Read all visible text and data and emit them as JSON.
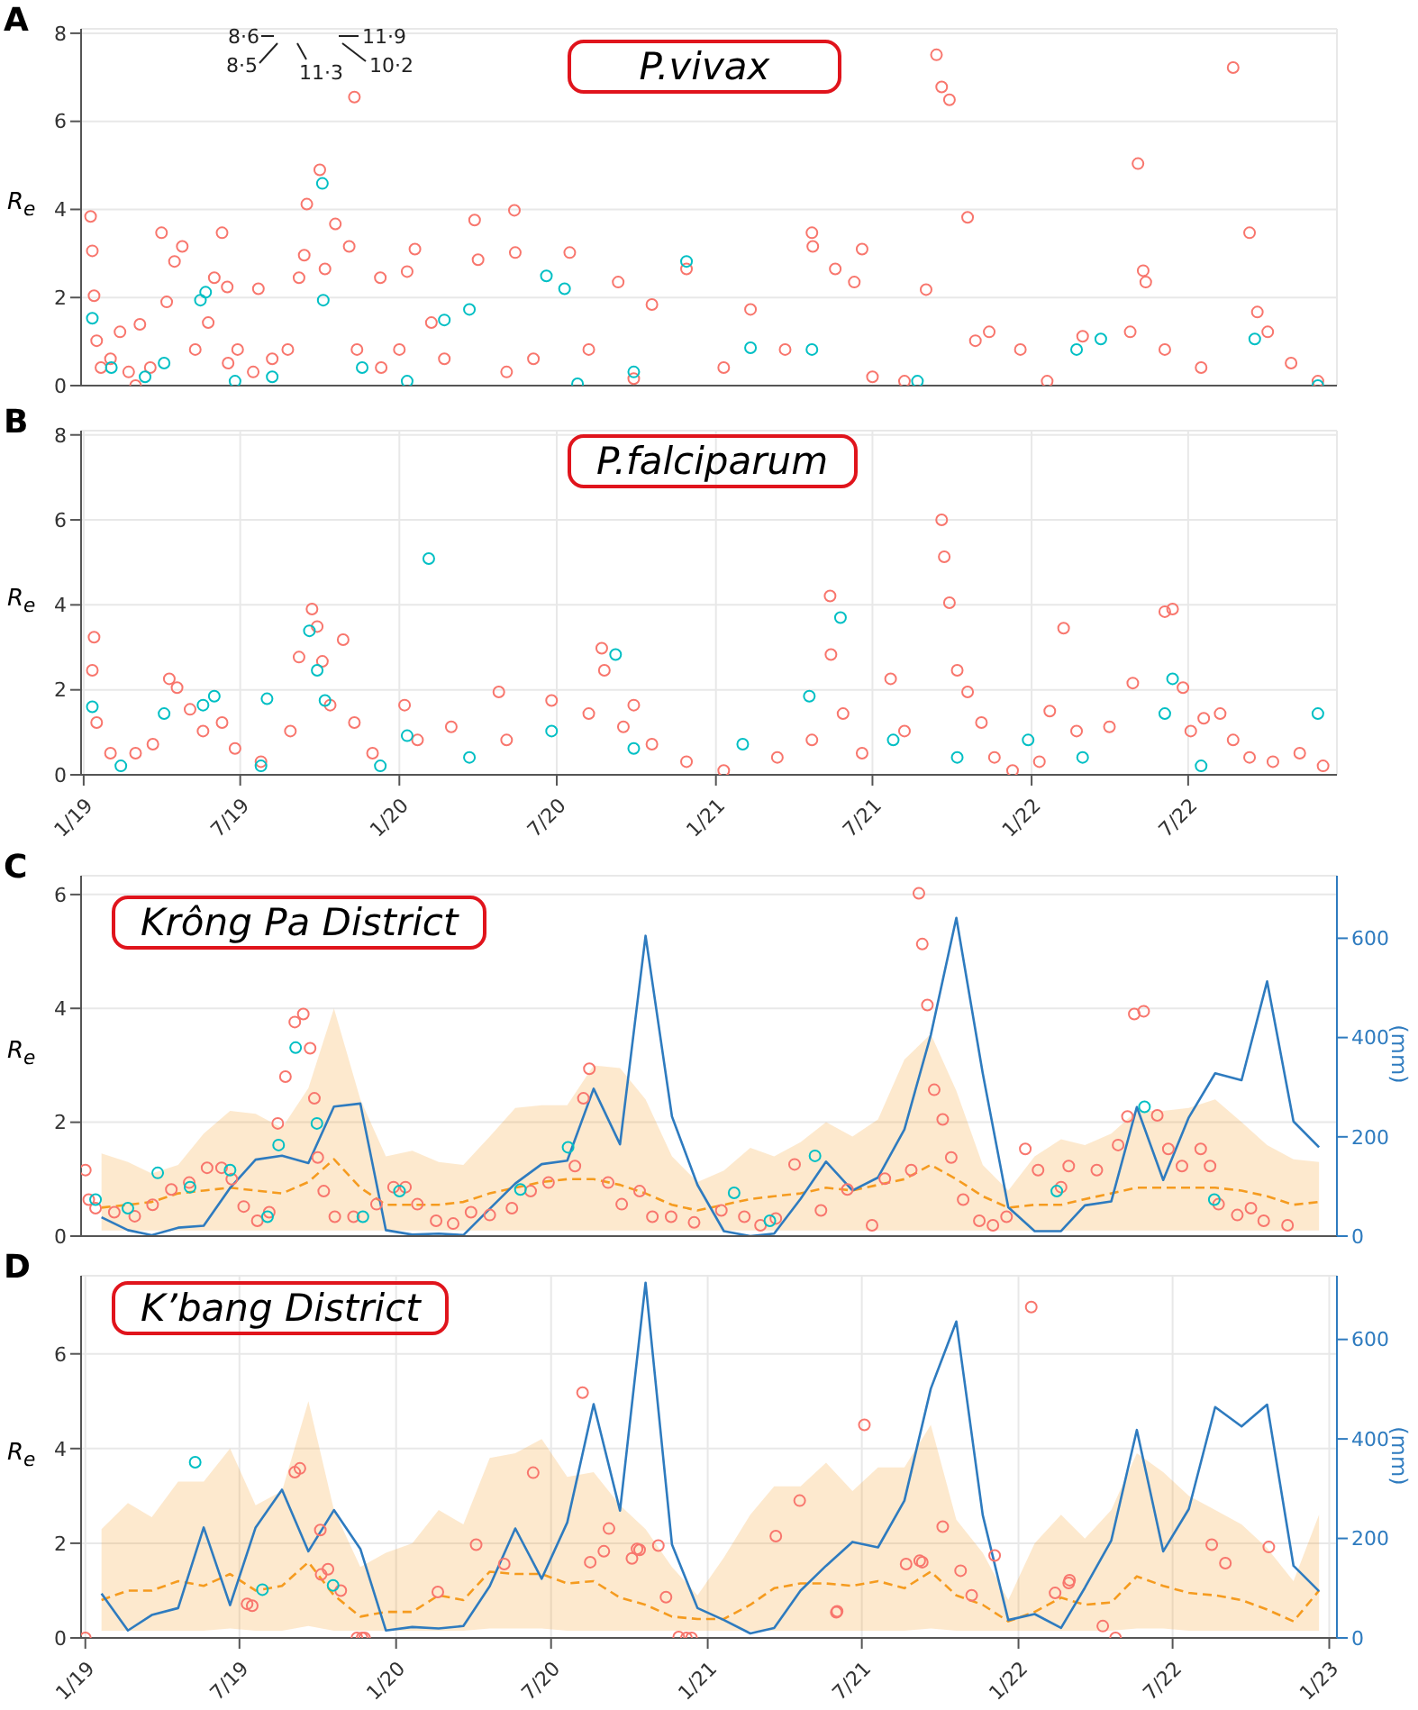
{
  "chart_data": [
    {
      "type": "scatter",
      "title": "P.vivax",
      "ylabel": "R$_{e}$",
      "annotations": [
        "A",
        "8·6",
        "8·5",
        "11·3",
        "11·9",
        "10·2"
      ],
      "xlim": [
        "2018-12-29",
        "2022-12-20"
      ],
      "xticks": [
        {
          "value": "2019-01-01",
          "label": null
        },
        {
          "value": "2019-07-01",
          "label": null
        },
        {
          "value": "2020-01-01",
          "label": null
        },
        {
          "value": "2020-07-01",
          "label": null
        },
        {
          "value": "2021-01-01",
          "label": null
        },
        {
          "value": "2021-07-01",
          "label": null
        },
        {
          "value": "2022-01-01",
          "label": null
        },
        {
          "value": "2022-07-01",
          "label": null
        }
      ],
      "ylim": [
        0,
        8.1
      ],
      "yticks": [
        0,
        2,
        4,
        6,
        8
      ],
      "grid": true,
      "tick_labels": "y",
      "series": [
        {
          "marker": "circle",
          "color": "#f8766d",
          "x": [
            "2019-01-09",
            "2019-01-11",
            "2019-01-13",
            "2019-01-16",
            "2019-01-21",
            "2019-02-01",
            "2019-02-12",
            "2019-02-22",
            "2019-03-02",
            "2019-03-07",
            "2019-03-19",
            "2019-04-01",
            "2019-04-07",
            "2019-04-16",
            "2019-04-25",
            "2019-05-10",
            "2019-05-25",
            "2019-06-01",
            "2019-06-10",
            "2019-06-16",
            "2019-06-17",
            "2019-06-28",
            "2019-07-16",
            "2019-07-22",
            "2019-08-07",
            "2019-08-25",
            "2019-09-07",
            "2019-09-13",
            "2019-09-16",
            "2019-10-01",
            "2019-10-07",
            "2019-10-19",
            "2019-11-04",
            "2019-11-10",
            "2019-11-13",
            "2019-12-10",
            "2019-12-11",
            "2020-01-01",
            "2020-01-10",
            "2020-01-19",
            "2020-02-07",
            "2020-02-22",
            "2020-03-28",
            "2020-04-01",
            "2020-05-04",
            "2020-05-13",
            "2020-05-14",
            "2020-06-04",
            "2020-07-16",
            "2020-08-07",
            "2020-09-10",
            "2020-09-28",
            "2020-10-19",
            "2020-11-28",
            "2021-01-10",
            "2021-02-10",
            "2021-03-22",
            "2021-04-22",
            "2021-04-23",
            "2021-05-19",
            "2021-06-10",
            "2021-06-19",
            "2021-07-01",
            "2021-08-07",
            "2021-09-01",
            "2021-09-13",
            "2021-09-19",
            "2021-09-28",
            "2021-10-19",
            "2021-10-28",
            "2021-11-13",
            "2021-12-19",
            "2022-01-19",
            "2022-03-01",
            "2022-04-25",
            "2022-05-04",
            "2022-05-10",
            "2022-05-13",
            "2022-06-04",
            "2022-07-16",
            "2022-08-22",
            "2022-09-10",
            "2022-09-19",
            "2022-10-01",
            "2022-10-28",
            "2022-11-28"
          ],
          "values": [
            3.84,
            3.06,
            2.04,
            1.02,
            0.41,
            0.61,
            1.22,
            0.31,
            0,
            1.39,
            0.41,
            3.47,
            1.9,
            2.82,
            3.16,
            0.82,
            1.43,
            2.45,
            3.47,
            2.24,
            0.51,
            0.82,
            0.31,
            2.2,
            0.61,
            0.82,
            2.45,
            2.96,
            4.12,
            4.9,
            2.65,
            3.67,
            3.16,
            6.55,
            0.82,
            2.45,
            0.41,
            0.82,
            2.59,
            3.1,
            1.43,
            0.61,
            3.76,
            2.86,
            0.31,
            3.98,
            3.02,
            0.61,
            3.02,
            0.82,
            2.35,
            0.16,
            1.84,
            2.65,
            0.41,
            1.73,
            0.82,
            3.47,
            3.16,
            2.65,
            2.35,
            3.1,
            0.2,
            0.1,
            2.18,
            7.51,
            6.78,
            6.49,
            3.82,
            1.02,
            1.22,
            0.82,
            0.1,
            1.12,
            1.22,
            5.04,
            2.61,
            2.35,
            0.82,
            0.41,
            7.22,
            3.47,
            1.67,
            1.22,
            0.51,
            0.1
          ]
        },
        {
          "marker": "circle",
          "color": "#00bfc4",
          "x": [
            "2019-01-11",
            "2019-02-02",
            "2019-03-13",
            "2019-04-04",
            "2019-05-16",
            "2019-05-22",
            "2019-06-25",
            "2019-08-07",
            "2019-10-04",
            "2019-10-05",
            "2019-11-19",
            "2020-01-10",
            "2020-02-22",
            "2020-03-22",
            "2020-06-19",
            "2020-07-10",
            "2020-07-25",
            "2020-09-28",
            "2020-11-28",
            "2021-02-10",
            "2021-04-22",
            "2021-08-22",
            "2022-02-22",
            "2022-03-22",
            "2022-09-16",
            "2022-11-28"
          ],
          "values": [
            1.53,
            0.41,
            0.2,
            0.51,
            1.94,
            2.12,
            0.1,
            0.2,
            4.59,
            1.94,
            0.41,
            0.1,
            1.49,
            1.73,
            2.49,
            2.2,
            0.04,
            0.31,
            2.82,
            0.86,
            0.82,
            0.1,
            0.82,
            1.06,
            1.06,
            0
          ]
        }
      ]
    },
    {
      "type": "scatter",
      "title": "P.falciparum",
      "ylabel": "R$_{e}$",
      "annotations": [
        "B"
      ],
      "xlim": [
        "2018-12-29",
        "2022-12-20"
      ],
      "xticks": [
        {
          "value": "2019-01-01",
          "label": "1/19"
        },
        {
          "value": "2019-07-01",
          "label": "7/19"
        },
        {
          "value": "2020-01-01",
          "label": "1/20"
        },
        {
          "value": "2020-07-01",
          "label": "7/20"
        },
        {
          "value": "2021-01-01",
          "label": "1/21"
        },
        {
          "value": "2021-07-01",
          "label": "7/21"
        },
        {
          "value": "2022-01-01",
          "label": "1/22"
        },
        {
          "value": "2022-07-01",
          "label": "7/22"
        }
      ],
      "ylim": [
        0,
        8.1
      ],
      "yticks": [
        0,
        2,
        4,
        6,
        8
      ],
      "grid": true,
      "series": [
        {
          "marker": "circle",
          "color": "#f8766d",
          "x": [
            "2019-01-11",
            "2019-01-13",
            "2019-01-16",
            "2019-02-01",
            "2019-03-02",
            "2019-03-22",
            "2019-04-10",
            "2019-04-19",
            "2019-05-04",
            "2019-05-19",
            "2019-06-10",
            "2019-06-25",
            "2019-07-25",
            "2019-08-28",
            "2019-09-07",
            "2019-09-22",
            "2019-09-28",
            "2019-10-04",
            "2019-10-13",
            "2019-10-28",
            "2019-11-10",
            "2019-12-01",
            "2020-01-07",
            "2020-01-22",
            "2020-03-01",
            "2020-04-25",
            "2020-05-04",
            "2020-06-25",
            "2020-08-07",
            "2020-08-22",
            "2020-08-25",
            "2020-09-16",
            "2020-09-28",
            "2020-10-19",
            "2020-11-28",
            "2021-01-10",
            "2021-03-13",
            "2021-04-22",
            "2021-05-13",
            "2021-05-14",
            "2021-05-28",
            "2021-06-19",
            "2021-07-22",
            "2021-08-07",
            "2021-09-19",
            "2021-09-22",
            "2021-09-28",
            "2021-10-07",
            "2021-10-19",
            "2021-11-04",
            "2021-11-19",
            "2021-12-10",
            "2022-01-10",
            "2022-01-22",
            "2022-02-07",
            "2022-02-22",
            "2022-04-01",
            "2022-04-28",
            "2022-06-04",
            "2022-06-13",
            "2022-06-25",
            "2022-07-04",
            "2022-07-19",
            "2022-08-07",
            "2022-08-22",
            "2022-09-10",
            "2022-10-07",
            "2022-11-07",
            "2022-12-04"
          ],
          "values": [
            2.46,
            3.24,
            1.23,
            0.51,
            0.51,
            0.72,
            2.26,
            2.05,
            1.54,
            1.03,
            1.23,
            0.62,
            0.31,
            1.03,
            2.77,
            3.9,
            3.49,
            2.67,
            1.64,
            3.18,
            1.23,
            0.51,
            1.64,
            0.82,
            1.13,
            1.95,
            0.82,
            1.75,
            1.44,
            2.98,
            2.46,
            1.13,
            1.64,
            0.72,
            0.31,
            0.1,
            0.41,
            0.82,
            4.21,
            2.83,
            1.44,
            0.51,
            2.26,
            1.03,
            6.0,
            5.13,
            4.05,
            2.46,
            1.95,
            1.23,
            0.41,
            0.1,
            0.31,
            1.5,
            3.45,
            1.03,
            1.13,
            2.16,
            3.84,
            3.9,
            2.05,
            1.03,
            1.33,
            1.44,
            0.82,
            0.41,
            0.31,
            0.51,
            0.21
          ]
        },
        {
          "marker": "circle",
          "color": "#00bfc4",
          "x": [
            "2019-01-11",
            "2019-02-13",
            "2019-04-04",
            "2019-05-19",
            "2019-06-01",
            "2019-07-25",
            "2019-08-01",
            "2019-09-19",
            "2019-09-28",
            "2019-10-07",
            "2019-12-10",
            "2020-01-10",
            "2020-02-04",
            "2020-03-22",
            "2020-06-25",
            "2020-09-07",
            "2020-09-28",
            "2021-02-01",
            "2021-04-19",
            "2021-05-25",
            "2021-07-25",
            "2021-10-07",
            "2021-12-28",
            "2022-03-01",
            "2022-06-04",
            "2022-06-13",
            "2022-07-16",
            "2022-11-28"
          ],
          "values": [
            1.6,
            0.21,
            1.44,
            1.64,
            1.85,
            0.21,
            1.79,
            3.39,
            2.46,
            1.75,
            0.21,
            0.92,
            5.09,
            0.41,
            1.03,
            2.83,
            0.62,
            0.72,
            1.85,
            3.7,
            0.82,
            0.41,
            0.82,
            0.41,
            1.44,
            2.26,
            0.21,
            1.44
          ]
        }
      ]
    },
    {
      "type": "scatter",
      "title": "Krông Pa District",
      "ylabel": "R$_{e}$",
      "y2label": "(mm)",
      "annotations": [
        "C"
      ],
      "xlim": [
        "2018-12-27",
        "2023-01-10"
      ],
      "xticks": [
        {
          "value": "2019-01-01",
          "label": null
        },
        {
          "value": "2019-07-01",
          "label": null
        },
        {
          "value": "2020-01-01",
          "label": null
        },
        {
          "value": "2020-07-01",
          "label": null
        },
        {
          "value": "2021-01-01",
          "label": null
        },
        {
          "value": "2021-07-01",
          "label": null
        },
        {
          "value": "2022-01-01",
          "label": null
        },
        {
          "value": "2022-07-01",
          "label": null
        },
        {
          "value": "2023-01-01",
          "label": null
        }
      ],
      "ylim": [
        0,
        6.33
      ],
      "yticks": [
        0,
        2,
        4,
        6
      ],
      "y2lim": [
        0,
        726
      ],
      "y2ticks": [
        0,
        200,
        400,
        600
      ],
      "grid": true,
      "tick_labels": "y",
      "x": [
        "2019-01-20",
        "2019-02-20",
        "2019-03-20",
        "2019-04-20",
        "2019-05-20",
        "2019-06-20",
        "2019-07-20",
        "2019-08-20",
        "2019-09-20",
        "2019-10-20",
        "2019-11-20",
        "2019-12-20",
        "2020-01-20",
        "2020-02-20",
        "2020-03-20",
        "2020-04-20",
        "2020-05-20",
        "2020-06-20",
        "2020-07-20",
        "2020-08-20",
        "2020-09-20",
        "2020-10-20",
        "2020-11-20",
        "2020-12-20",
        "2021-01-20",
        "2021-02-20",
        "2021-03-20",
        "2021-04-20",
        "2021-05-20",
        "2021-06-20",
        "2021-07-20",
        "2021-08-20",
        "2021-09-20",
        "2021-10-20",
        "2021-11-20",
        "2021-12-20",
        "2022-01-20",
        "2022-02-20",
        "2022-03-20",
        "2022-04-20",
        "2022-05-20",
        "2022-06-20",
        "2022-07-20",
        "2022-08-20",
        "2022-09-20",
        "2022-10-20",
        "2022-11-20",
        "2022-12-20"
      ],
      "series": [
        {
          "type": "line",
          "color": "#f59b1f",
          "line_style": "dashed",
          "values": [
            0.5,
            0.55,
            0.6,
            0.75,
            0.8,
            0.85,
            0.8,
            0.75,
            0.95,
            1.35,
            0.85,
            0.55,
            0.55,
            0.55,
            0.6,
            0.75,
            0.85,
            0.95,
            1.0,
            1.0,
            0.9,
            0.75,
            0.55,
            0.45,
            0.55,
            0.65,
            0.7,
            0.75,
            0.85,
            0.8,
            0.9,
            1.0,
            1.25,
            1.0,
            0.7,
            0.5,
            0.55,
            0.55,
            0.65,
            0.75,
            0.85,
            0.85,
            0.85,
            0.85,
            0.8,
            0.7,
            0.55,
            0.6
          ],
          "lower": [
            0.1,
            0.1,
            0.1,
            0.1,
            0.1,
            0.1,
            0.1,
            0.1,
            0.1,
            0.1,
            0.1,
            0.1,
            0.1,
            0.1,
            0.1,
            0.1,
            0.1,
            0.1,
            0.1,
            0.1,
            0.1,
            0.1,
            0.1,
            0.1,
            0.1,
            0.1,
            0.1,
            0.1,
            0.1,
            0.1,
            0.1,
            0.1,
            0.1,
            0.1,
            0.1,
            0.1,
            0.1,
            0.1,
            0.1,
            0.1,
            0.1,
            0.1,
            0.1,
            0.1,
            0.1,
            0.1,
            0.1,
            0.1
          ],
          "upper": [
            1.45,
            1.3,
            1.1,
            1.25,
            1.8,
            2.2,
            2.15,
            1.9,
            2.6,
            4.0,
            2.4,
            1.4,
            1.5,
            1.3,
            1.25,
            1.75,
            2.25,
            2.3,
            2.3,
            3.0,
            2.95,
            2.4,
            1.4,
            0.95,
            1.15,
            1.55,
            1.4,
            1.65,
            2.0,
            1.75,
            2.05,
            3.1,
            3.55,
            2.55,
            1.25,
            0.8,
            1.4,
            1.7,
            1.6,
            1.8,
            2.2,
            2.2,
            2.25,
            2.4,
            2.0,
            1.6,
            1.35,
            1.3
          ]
        },
        {
          "marker": "circle",
          "color": "#f8766d",
          "x": [
            "2019-01-01",
            "2019-01-05",
            "2019-01-13",
            "2019-02-04",
            "2019-02-28",
            "2019-03-21",
            "2019-04-12",
            "2019-05-03",
            "2019-05-24",
            "2019-06-10",
            "2019-06-22",
            "2019-07-06",
            "2019-07-22",
            "2019-08-05",
            "2019-08-15",
            "2019-08-24",
            "2019-09-04",
            "2019-09-14",
            "2019-09-22",
            "2019-09-27",
            "2019-10-01",
            "2019-10-08",
            "2019-10-21",
            "2019-11-12",
            "2019-12-09",
            "2019-12-29",
            "2020-01-12",
            "2020-01-26",
            "2020-02-17",
            "2020-03-08",
            "2020-03-29",
            "2020-04-20",
            "2020-05-16",
            "2020-06-07",
            "2020-06-28",
            "2020-07-29",
            "2020-08-08",
            "2020-08-15",
            "2020-09-06",
            "2020-09-22",
            "2020-10-13",
            "2020-10-28",
            "2020-11-19",
            "2020-12-16",
            "2021-01-17",
            "2021-02-13",
            "2021-03-04",
            "2021-03-22",
            "2021-04-13",
            "2021-05-14",
            "2021-06-14",
            "2021-07-13",
            "2021-07-28",
            "2021-08-28",
            "2021-09-06",
            "2021-09-10",
            "2021-09-16",
            "2021-09-24",
            "2021-10-04",
            "2021-10-14",
            "2021-10-28",
            "2021-11-16",
            "2021-12-02",
            "2021-12-18",
            "2022-01-09",
            "2022-01-24",
            "2022-02-20",
            "2022-03-01",
            "2022-04-03",
            "2022-04-28",
            "2022-05-09",
            "2022-05-17",
            "2022-05-28",
            "2022-06-13",
            "2022-06-26",
            "2022-07-12",
            "2022-08-03",
            "2022-08-14",
            "2022-08-24",
            "2022-09-15",
            "2022-10-01",
            "2022-10-16",
            "2022-11-13"
          ],
          "values": [
            1.16,
            0.64,
            0.49,
            0.42,
            0.35,
            0.55,
            0.82,
            0.94,
            1.2,
            1.2,
            1.0,
            0.52,
            0.27,
            0.42,
            1.98,
            2.8,
            3.76,
            3.9,
            3.3,
            2.42,
            1.38,
            0.79,
            0.34,
            0.34,
            0.56,
            0.86,
            0.86,
            0.56,
            0.27,
            0.22,
            0.42,
            0.37,
            0.49,
            0.79,
            0.94,
            1.23,
            2.42,
            2.94,
            0.94,
            0.56,
            0.79,
            0.34,
            0.34,
            0.24,
            0.45,
            0.34,
            0.19,
            0.31,
            1.26,
            0.45,
            0.82,
            0.19,
            1.01,
            1.16,
            6.02,
            5.13,
            4.06,
            2.57,
            2.05,
            1.38,
            0.64,
            0.27,
            0.19,
            0.34,
            1.53,
            1.16,
            0.86,
            1.23,
            1.16,
            1.6,
            2.1,
            3.9,
            3.95,
            2.12,
            1.53,
            1.23,
            1.53,
            1.23,
            0.56,
            0.37,
            0.49,
            0.27,
            0.19
          ]
        },
        {
          "marker": "circle",
          "color": "#00bfc4",
          "x": [
            "2019-01-13",
            "2019-02-20",
            "2019-03-27",
            "2019-05-04",
            "2019-06-20",
            "2019-08-03",
            "2019-08-16",
            "2019-09-05",
            "2019-09-30",
            "2019-11-23",
            "2020-01-05",
            "2020-05-26",
            "2020-07-21",
            "2021-02-01",
            "2021-03-15",
            "2021-05-07",
            "2022-02-15",
            "2022-05-29",
            "2022-08-19"
          ],
          "values": [
            0.64,
            0.49,
            1.11,
            0.86,
            1.16,
            0.34,
            1.6,
            3.31,
            1.98,
            0.34,
            0.79,
            0.82,
            1.56,
            0.76,
            0.27,
            1.41,
            0.79,
            2.27,
            0.64
          ]
        },
        {
          "type": "line",
          "axis": "y2",
          "color": "#2e7bbf",
          "values": [
            38,
            12,
            2,
            17,
            21,
            97,
            154,
            162,
            147,
            261,
            267,
            12,
            3,
            5,
            2,
            55,
            106,
            145,
            152,
            297,
            185,
            605,
            241,
            103,
            10,
            0,
            5,
            75,
            150,
            92,
            118,
            215,
            405,
            641,
            328,
            58,
            10,
            10,
            62,
            70,
            260,
            113,
            239,
            328,
            314,
            513,
            231,
            179
          ]
        }
      ]
    },
    {
      "type": "scatter",
      "title": "K’bang District",
      "ylabel": "R$_{e}$",
      "y2label": "(mm)",
      "annotations": [
        "D"
      ],
      "xlim": [
        "2018-12-27",
        "2023-01-10"
      ],
      "xticks": [
        {
          "value": "2019-01-01",
          "label": "1/19"
        },
        {
          "value": "2019-07-01",
          "label": "7/19"
        },
        {
          "value": "2020-01-01",
          "label": "1/20"
        },
        {
          "value": "2020-07-01",
          "label": "7/20"
        },
        {
          "value": "2021-01-01",
          "label": "1/21"
        },
        {
          "value": "2021-07-01",
          "label": "7/21"
        },
        {
          "value": "2022-01-01",
          "label": "1/22"
        },
        {
          "value": "2022-07-01",
          "label": "7/22"
        },
        {
          "value": "2023-01-01",
          "label": "1/23"
        }
      ],
      "ylim": [
        0,
        7.65
      ],
      "yticks": [
        0,
        2,
        4,
        6
      ],
      "y2lim": [
        0,
        728
      ],
      "y2ticks": [
        0,
        200,
        400,
        600
      ],
      "grid": true,
      "x": [
        "2019-01-20",
        "2019-02-20",
        "2019-03-20",
        "2019-04-20",
        "2019-05-20",
        "2019-06-20",
        "2019-07-20",
        "2019-08-20",
        "2019-09-20",
        "2019-10-20",
        "2019-11-20",
        "2019-12-20",
        "2020-01-20",
        "2020-02-20",
        "2020-03-20",
        "2020-04-20",
        "2020-05-20",
        "2020-06-20",
        "2020-07-20",
        "2020-08-20",
        "2020-09-20",
        "2020-10-20",
        "2020-11-20",
        "2020-12-20",
        "2021-01-20",
        "2021-02-20",
        "2021-03-20",
        "2021-04-20",
        "2021-05-20",
        "2021-06-20",
        "2021-07-20",
        "2021-08-20",
        "2021-09-20",
        "2021-10-20",
        "2021-11-20",
        "2021-12-20",
        "2022-01-20",
        "2022-02-20",
        "2022-03-20",
        "2022-04-20",
        "2022-05-20",
        "2022-06-20",
        "2022-07-20",
        "2022-08-20",
        "2022-09-20",
        "2022-10-20",
        "2022-11-20",
        "2022-12-20"
      ],
      "series": [
        {
          "type": "line",
          "color": "#f59b1f",
          "line_style": "dashed",
          "values": [
            0.8,
            1.0,
            1.0,
            1.2,
            1.1,
            1.35,
            1.0,
            1.1,
            1.6,
            0.9,
            0.45,
            0.55,
            0.55,
            0.9,
            0.8,
            1.4,
            1.35,
            1.35,
            1.15,
            1.2,
            0.85,
            0.7,
            0.45,
            0.4,
            0.4,
            0.7,
            1.05,
            1.15,
            1.15,
            1.1,
            1.2,
            1.05,
            1.4,
            0.9,
            0.7,
            0.35,
            0.55,
            0.85,
            0.7,
            0.75,
            1.3,
            1.1,
            0.95,
            0.9,
            0.8,
            0.6,
            0.35,
            1.0
          ],
          "lower": [
            0.15,
            0.15,
            0.15,
            0.15,
            0.15,
            0.2,
            0.15,
            0.15,
            0.25,
            0.15,
            0.15,
            0.15,
            0.15,
            0.15,
            0.15,
            0.2,
            0.2,
            0.2,
            0.15,
            0.15,
            0.15,
            0.15,
            0.15,
            0.15,
            0.15,
            0.15,
            0.15,
            0.15,
            0.15,
            0.15,
            0.15,
            0.15,
            0.2,
            0.15,
            0.15,
            0.15,
            0.15,
            0.15,
            0.15,
            0.15,
            0.2,
            0.2,
            0.15,
            0.15,
            0.15,
            0.15,
            0.15,
            0.15
          ],
          "upper": [
            2.3,
            2.85,
            2.55,
            3.3,
            3.3,
            4.0,
            2.8,
            3.1,
            5.0,
            2.7,
            1.5,
            1.8,
            2.0,
            2.7,
            2.4,
            3.8,
            3.9,
            4.2,
            3.4,
            3.5,
            2.8,
            2.3,
            1.5,
            0.9,
            1.7,
            2.6,
            3.2,
            3.2,
            3.7,
            3.1,
            3.6,
            3.6,
            4.5,
            2.5,
            1.8,
            0.8,
            2.0,
            2.6,
            2.1,
            2.7,
            3.9,
            3.5,
            3.0,
            2.7,
            2.4,
            1.9,
            1.2,
            2.6
          ]
        },
        {
          "marker": "circle",
          "color": "#f8766d",
          "x": [
            "2019-01-01",
            "2019-07-10",
            "2019-07-16",
            "2019-09-04",
            "2019-09-10",
            "2019-10-04",
            "2019-10-05",
            "2019-10-13",
            "2019-10-28",
            "2019-11-16",
            "2019-11-22",
            "2019-11-25",
            "2020-02-19",
            "2020-04-04",
            "2020-05-07",
            "2020-06-10",
            "2020-08-07",
            "2020-08-16",
            "2020-09-01",
            "2020-09-07",
            "2020-10-04",
            "2020-10-10",
            "2020-10-13",
            "2020-11-04",
            "2020-11-13",
            "2020-11-28",
            "2020-12-07",
            "2020-12-13",
            "2021-03-22",
            "2021-04-19",
            "2021-06-01",
            "2021-06-02",
            "2021-07-04",
            "2021-08-22",
            "2021-09-07",
            "2021-09-10",
            "2021-10-04",
            "2021-10-25",
            "2021-11-07",
            "2021-12-04",
            "2022-01-16",
            "2022-02-13",
            "2022-03-01",
            "2022-03-02",
            "2022-04-10",
            "2022-04-25",
            "2022-08-16",
            "2022-09-01",
            "2022-10-22"
          ],
          "values": [
            0,
            0.72,
            0.68,
            3.5,
            3.58,
            2.28,
            1.34,
            1.45,
            1.0,
            0,
            0,
            0,
            0.97,
            1.97,
            1.56,
            3.49,
            5.18,
            1.6,
            1.83,
            2.31,
            1.68,
            1.88,
            1.86,
            1.95,
            0.86,
            0.02,
            0,
            0,
            2.15,
            2.9,
            0.54,
            0.56,
            4.5,
            1.56,
            1.63,
            1.6,
            2.35,
            1.42,
            0.9,
            1.74,
            6.99,
            0.95,
            1.16,
            1.22,
            0.25,
            0,
            1.97,
            1.58,
            1.92
          ]
        },
        {
          "marker": "circle",
          "color": "#00bfc4",
          "x": [
            "2019-05-10",
            "2019-07-28",
            "2019-10-19"
          ],
          "values": [
            3.71,
            1.02,
            1.11
          ]
        },
        {
          "type": "line",
          "axis": "y2",
          "color": "#2e7bbf",
          "values": [
            89,
            15,
            46,
            60,
            222,
            66,
            222,
            298,
            174,
            257,
            179,
            15,
            22,
            19,
            24,
            104,
            220,
            119,
            232,
            470,
            256,
            714,
            188,
            60,
            36,
            9,
            20,
            95,
            145,
            193,
            182,
            276,
            501,
            636,
            247,
            36,
            48,
            20,
            101,
            196,
            418,
            174,
            259,
            464,
            425,
            469,
            145,
            94
          ]
        }
      ]
    }
  ]
}
